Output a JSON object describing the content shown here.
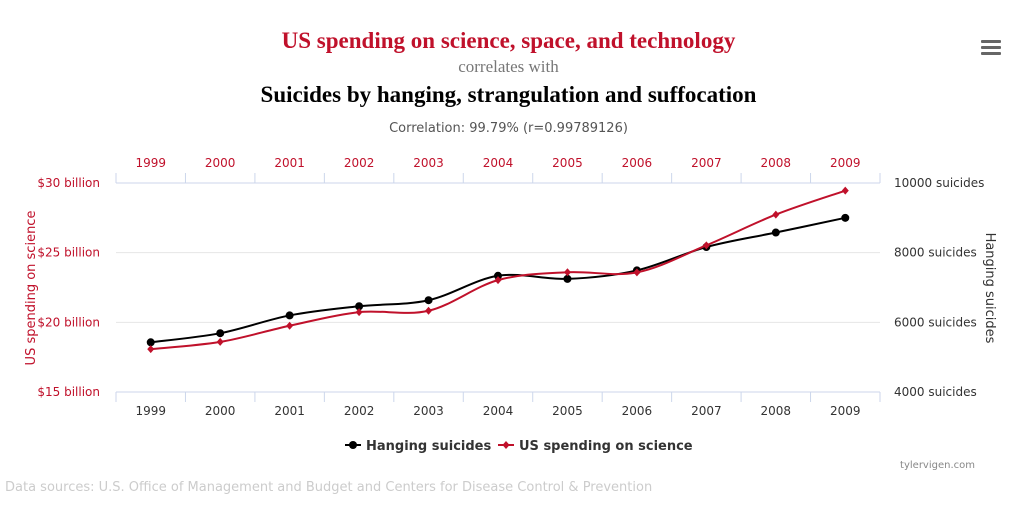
{
  "header": {
    "title": "US spending on science, space, and technology",
    "connector": "correlates with",
    "subtitle": "Suicides by hanging, strangulation and suffocation",
    "correlation": "Correlation: 99.79% (r=0.99789126)"
  },
  "menu_icon": "hamburger-menu-icon",
  "chart_data": {
    "type": "line",
    "categories": [
      "1999",
      "2000",
      "2001",
      "2002",
      "2003",
      "2004",
      "2005",
      "2006",
      "2007",
      "2008",
      "2009"
    ],
    "left_axis": {
      "label": "US spending on science",
      "ticks": [
        "$15 billion",
        "$20 billion",
        "$25 billion",
        "$30 billion"
      ],
      "range": [
        15,
        30
      ],
      "color": "#c0112b"
    },
    "right_axis": {
      "label": "Hanging suicides",
      "ticks": [
        "4000 suicides",
        "6000 suicides",
        "8000 suicides",
        "10000 suicides"
      ],
      "range": [
        4000,
        10000
      ],
      "color": "#333333"
    },
    "series": [
      {
        "name": "Hanging suicides",
        "axis": "right",
        "color": "#000000",
        "marker": "circle",
        "values": [
          5427,
          5688,
          6198,
          6462,
          6635,
          7336,
          7248,
          7491,
          8161,
          8578,
          9000
        ]
      },
      {
        "name": "US spending on science",
        "axis": "left",
        "color": "#c0112b",
        "marker": "diamond",
        "values": [
          18.079,
          18.594,
          19.753,
          20.734,
          20.831,
          23.029,
          23.597,
          23.584,
          25.525,
          27.731,
          29.449
        ]
      }
    ],
    "grid": true,
    "legend": "bottom"
  },
  "footer": {
    "credit": "tylervigen.com",
    "sources": "Data sources: U.S. Office of Management and Budget and Centers for Disease Control & Prevention"
  }
}
